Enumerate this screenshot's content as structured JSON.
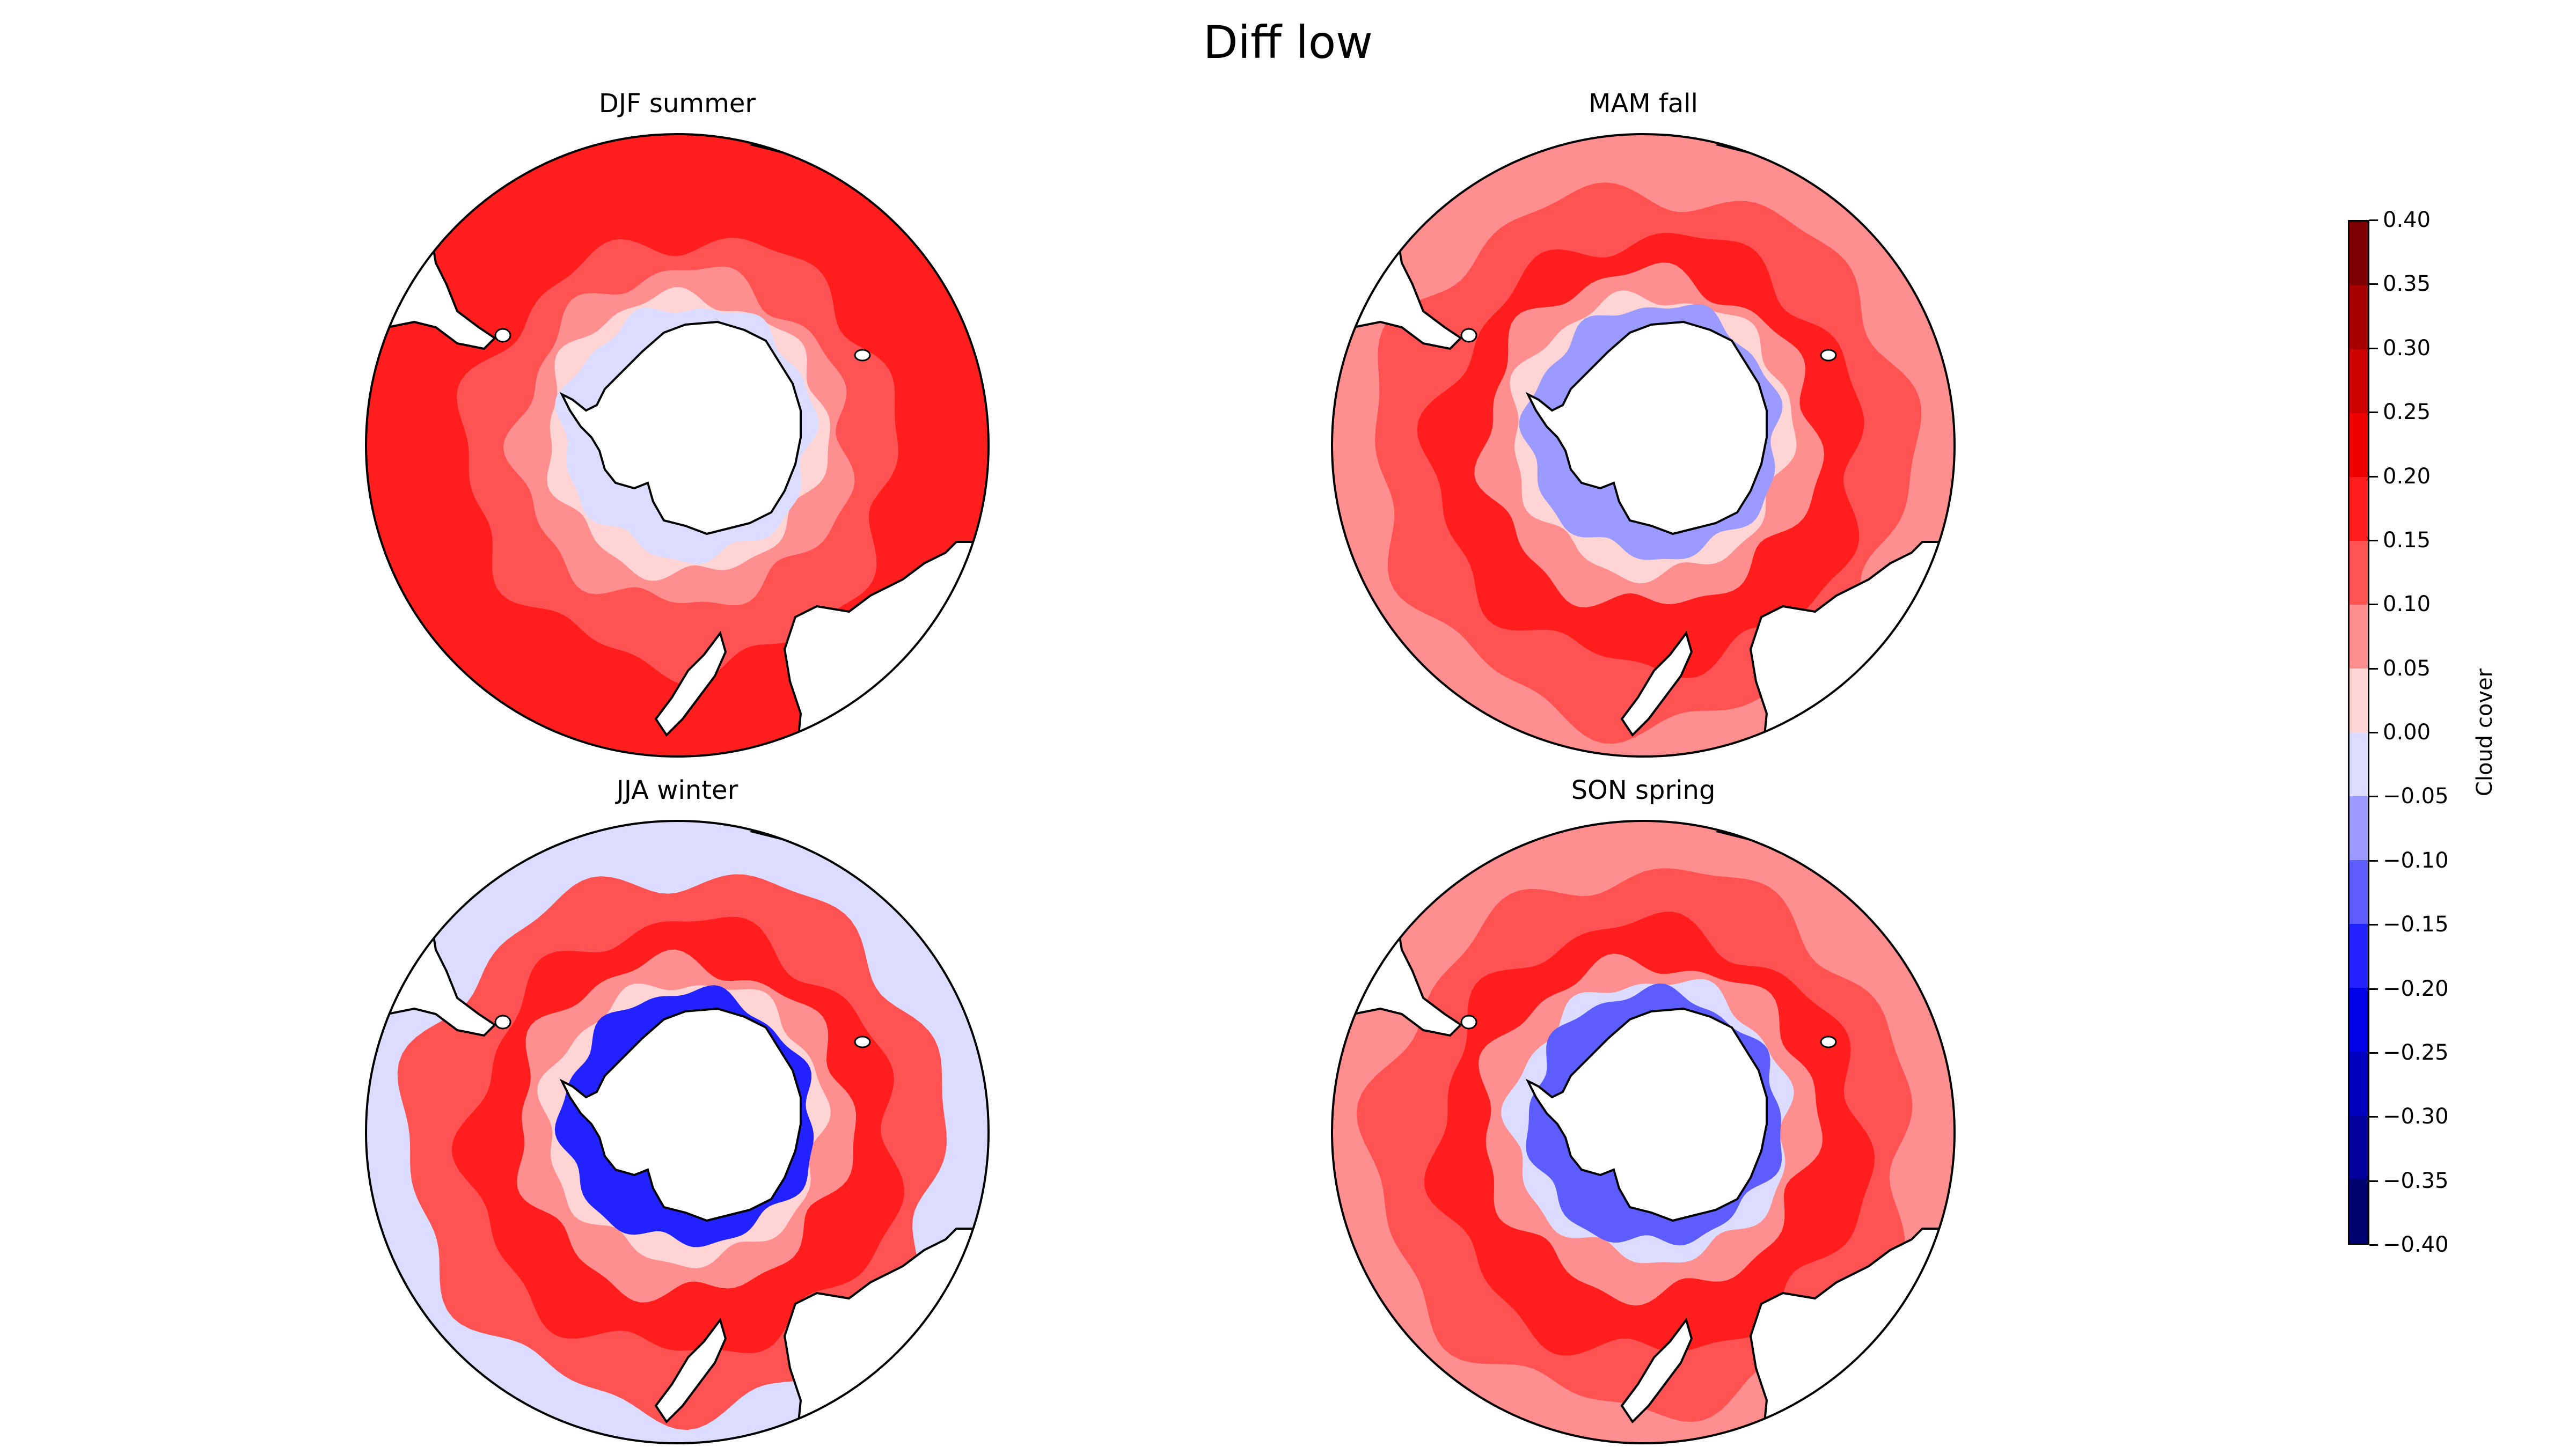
{
  "title": "Diff low",
  "panels": [
    {
      "key": "djf",
      "title": "DJF summer"
    },
    {
      "key": "mam",
      "title": "MAM fall"
    },
    {
      "key": "jja",
      "title": "JJA winter"
    },
    {
      "key": "son",
      "title": "SON spring"
    }
  ],
  "colorbar": {
    "label": "Cloud cover",
    "ticks": [
      "0.40",
      "0.35",
      "0.30",
      "0.25",
      "0.20",
      "0.15",
      "0.10",
      "0.05",
      "0.00",
      "−0.05",
      "−0.10",
      "−0.15",
      "−0.20",
      "−0.25",
      "−0.30",
      "−0.35",
      "−0.40"
    ],
    "colors": [
      "#7f0000",
      "#a60000",
      "#cc0000",
      "#ec0000",
      "#ff1e1e",
      "#ff5252",
      "#ff8e8e",
      "#ffd4d4",
      "#dcdcff",
      "#9a9aff",
      "#5c5cff",
      "#2222ff",
      "#0000e6",
      "#0000c0",
      "#00009a",
      "#000070"
    ]
  },
  "colors": {
    "land": "#ffffff",
    "coastline": "#000000"
  }
}
